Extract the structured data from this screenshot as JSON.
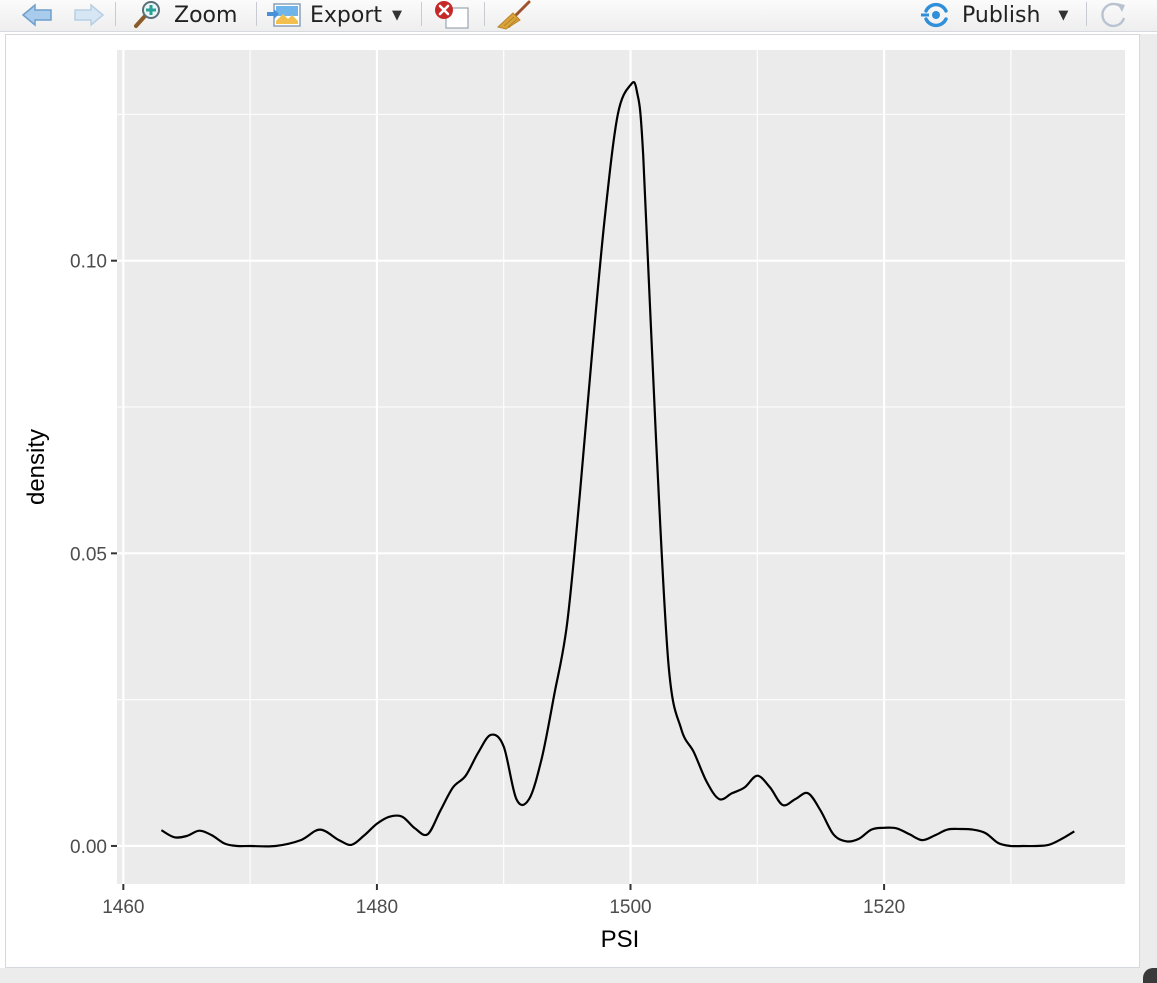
{
  "toolbar": {
    "back_icon": "arrow-left-icon",
    "forward_icon": "arrow-right-icon",
    "zoom_label": "Zoom",
    "export_label": "Export",
    "remove_icon": "remove-plot-icon",
    "clear_icon": "broom-icon",
    "publish_label": "Publish",
    "refresh_icon": "refresh-icon",
    "accent_color": "#2f8fd8"
  },
  "chart_data": {
    "type": "line",
    "title": "",
    "xlabel": "PSI",
    "ylabel": "density",
    "xlim": [
      1459.5,
      1539
    ],
    "ylim": [
      -0.0065,
      0.136
    ],
    "x_ticks": [
      1460,
      1480,
      1500,
      1520
    ],
    "x_tick_labels": [
      "1460",
      "1480",
      "1500",
      "1520"
    ],
    "y_ticks": [
      0.0,
      0.05,
      0.1
    ],
    "y_tick_labels": [
      "0.00",
      "0.05",
      "0.10"
    ],
    "grid": true,
    "background": "#ebebeb",
    "line_color": "#000000",
    "series": [
      {
        "x": [
          1463,
          1464,
          1465,
          1466,
          1467,
          1468,
          1469,
          1470,
          1472,
          1474,
          1475.5,
          1477,
          1478,
          1479,
          1480,
          1481,
          1482,
          1483,
          1484,
          1485,
          1486,
          1487,
          1488,
          1489,
          1490,
          1491,
          1492,
          1493,
          1494,
          1495,
          1496,
          1497,
          1498,
          1499,
          1500,
          1500.5,
          1501,
          1502,
          1503,
          1504,
          1505,
          1506,
          1507,
          1508,
          1509,
          1510,
          1511,
          1512,
          1513,
          1514,
          1515,
          1516,
          1517,
          1518,
          1519,
          1520,
          1521,
          1522,
          1523,
          1524,
          1525,
          1526,
          1527,
          1528,
          1529,
          1530,
          1531,
          1532,
          1533,
          1534,
          1535
        ],
        "y": [
          0.0027,
          0.0015,
          0.0017,
          0.0026,
          0.0018,
          0.0004,
          0.0,
          0.0,
          0.0,
          0.001,
          0.0028,
          0.001,
          0.0002,
          0.0018,
          0.0038,
          0.005,
          0.005,
          0.003,
          0.002,
          0.006,
          0.01,
          0.012,
          0.016,
          0.019,
          0.017,
          0.008,
          0.008,
          0.015,
          0.026,
          0.038,
          0.06,
          0.085,
          0.108,
          0.125,
          0.13,
          0.129,
          0.118,
          0.07,
          0.031,
          0.02,
          0.016,
          0.011,
          0.008,
          0.009,
          0.01,
          0.012,
          0.01,
          0.007,
          0.008,
          0.009,
          0.006,
          0.002,
          0.0008,
          0.0012,
          0.0028,
          0.0031,
          0.003,
          0.002,
          0.001,
          0.0018,
          0.0028,
          0.0029,
          0.0028,
          0.0022,
          0.0005,
          0.0,
          0.0,
          0.0,
          0.0002,
          0.0012,
          0.0025
        ]
      }
    ]
  }
}
